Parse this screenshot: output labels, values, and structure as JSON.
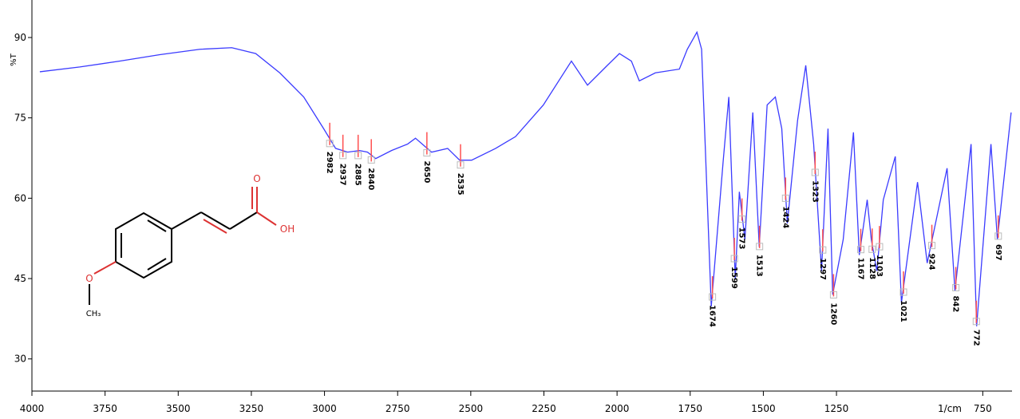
{
  "chart_data": {
    "type": "line",
    "y_label": "%T",
    "x_label": "1/cm",
    "xlim": [
      4000,
      650
    ],
    "ylim": [
      24,
      97
    ],
    "xticks": [
      4000,
      3750,
      3500,
      3250,
      3000,
      2750,
      2500,
      2250,
      2000,
      1750,
      1500,
      1250,
      750
    ],
    "yticks": [
      30,
      45,
      60,
      75,
      90
    ],
    "x": [
      3973,
      3836,
      3699,
      3563,
      3426,
      3317,
      3235,
      3153,
      3071,
      3003,
      2962,
      2921,
      2880,
      2853,
      2825,
      2771,
      2716,
      2689,
      2634,
      2579,
      2538,
      2497,
      2415,
      2347,
      2252,
      2156,
      2101,
      2033,
      1992,
      1951,
      1924,
      1869,
      1787,
      1760,
      1727,
      1711,
      1678,
      1637,
      1618,
      1596,
      1582,
      1563,
      1536,
      1514,
      1487,
      1459,
      1437,
      1418,
      1383,
      1355,
      1328,
      1301,
      1279,
      1263,
      1227,
      1192,
      1172,
      1145,
      1131,
      1112,
      1090,
      1049,
      1028,
      973,
      940,
      872,
      845,
      790,
      771,
      722,
      700,
      653
    ],
    "series": [
      {
        "color": "#3b3bff",
        "values": [
          83.6,
          84.5,
          85.6,
          86.8,
          87.8,
          88.1,
          87.0,
          83.4,
          78.9,
          73.0,
          69.3,
          68.6,
          68.9,
          68.6,
          67.4,
          68.9,
          70.1,
          71.2,
          68.6,
          69.3,
          67.1,
          67.1,
          69.3,
          71.5,
          77.4,
          85.6,
          81.1,
          84.8,
          87.0,
          85.6,
          81.9,
          83.4,
          84.1,
          87.8,
          91.0,
          87.8,
          39.8,
          67.1,
          78.9,
          45.0,
          61.2,
          52.3,
          76.0,
          50.9,
          77.4,
          78.9,
          73.0,
          55.3,
          74.5,
          84.8,
          70.1,
          46.4,
          73.0,
          42.0,
          52.3,
          72.3,
          49.4,
          59.7,
          52.3,
          46.4,
          59.7,
          67.8,
          40.5,
          63.0,
          47.9,
          65.6,
          42.7,
          70.1,
          36.1,
          70.1,
          52.3,
          76.0
        ]
      }
    ],
    "peak_color": "#ff5050",
    "peak_labels": [
      2982,
      2937,
      2885,
      2840,
      2650,
      2535,
      1674,
      1599,
      1573,
      1513,
      1424,
      1323,
      1297,
      1260,
      1167,
      1128,
      1103,
      1021,
      924,
      842,
      772,
      697
    ],
    "structure_labels": [
      "O",
      "OH",
      "O",
      "CH₃"
    ]
  }
}
